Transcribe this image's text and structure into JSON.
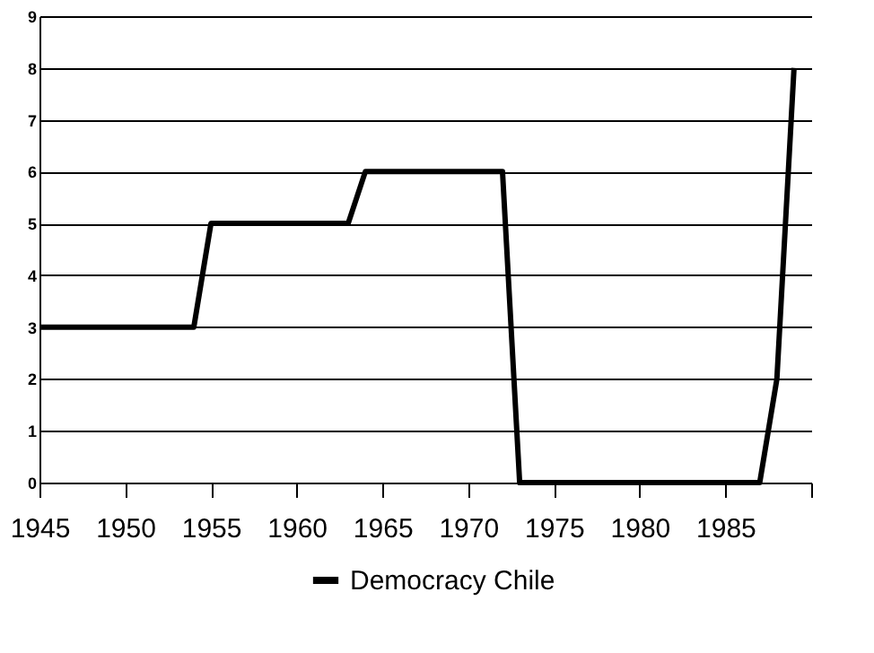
{
  "chart_data": {
    "type": "line",
    "x": [
      1945,
      1954,
      1955,
      1963,
      1964,
      1972,
      1973,
      1987,
      1988,
      1989
    ],
    "series": [
      {
        "name": "Democracy Chile",
        "color": "#000000",
        "values": [
          3,
          3,
          5,
          5,
          6,
          6,
          0,
          0,
          2,
          8
        ]
      }
    ],
    "xlim": [
      1945,
      1990
    ],
    "xticks": [
      1945,
      1950,
      1955,
      1960,
      1965,
      1970,
      1975,
      1980,
      1985,
      {
        "value": 1990,
        "label": null
      }
    ],
    "ylim": [
      0,
      9
    ],
    "yticks": [
      0,
      1,
      2,
      3,
      4,
      5,
      6,
      7,
      8,
      9
    ],
    "grid": "y",
    "legend": "bottom",
    "marker": "none",
    "line_style": "solid"
  }
}
